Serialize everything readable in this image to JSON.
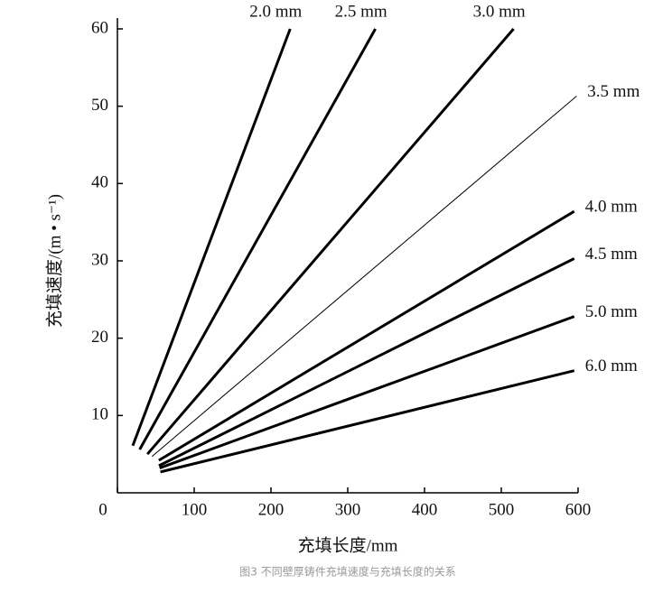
{
  "chart_data": {
    "type": "line",
    "x_label": "充填长度/mm",
    "y_label": "充填速度/(m • s⁻¹)",
    "caption": "图3 不同壁厚铸件充填速度与充填长度的关系",
    "xlim": [
      0,
      600
    ],
    "xticks": [
      0,
      100,
      200,
      300,
      400,
      500,
      600
    ],
    "ylim": [
      0,
      60
    ],
    "yticks": [
      10,
      20,
      30,
      40,
      50,
      60
    ],
    "color": "#000000",
    "series": [
      {
        "name": "2.0 mm",
        "line_width": 3,
        "x": [
          20,
          225
        ],
        "values": [
          6.1,
          60
        ]
      },
      {
        "name": "2.5 mm",
        "line_width": 3,
        "x": [
          29,
          336
        ],
        "values": [
          5.6,
          60
        ]
      },
      {
        "name": "3.0 mm",
        "line_width": 3,
        "x": [
          39,
          516
        ],
        "values": [
          5.0,
          60
        ]
      },
      {
        "name": "3.5 mm",
        "line_width": 1,
        "x": [
          45,
          598
        ],
        "values": [
          4.7,
          51.3
        ]
      },
      {
        "name": "4.0 mm",
        "line_width": 3,
        "x": [
          54,
          595
        ],
        "values": [
          4.2,
          36.4
        ]
      },
      {
        "name": "4.5 mm",
        "line_width": 3,
        "x": [
          54,
          595
        ],
        "values": [
          3.5,
          30.3
        ]
      },
      {
        "name": "5.0 mm",
        "line_width": 3,
        "x": [
          55,
          595
        ],
        "values": [
          3.2,
          22.8
        ]
      },
      {
        "name": "6.0 mm",
        "line_width": 3,
        "x": [
          56,
          595
        ],
        "values": [
          2.7,
          15.8
        ]
      }
    ]
  }
}
